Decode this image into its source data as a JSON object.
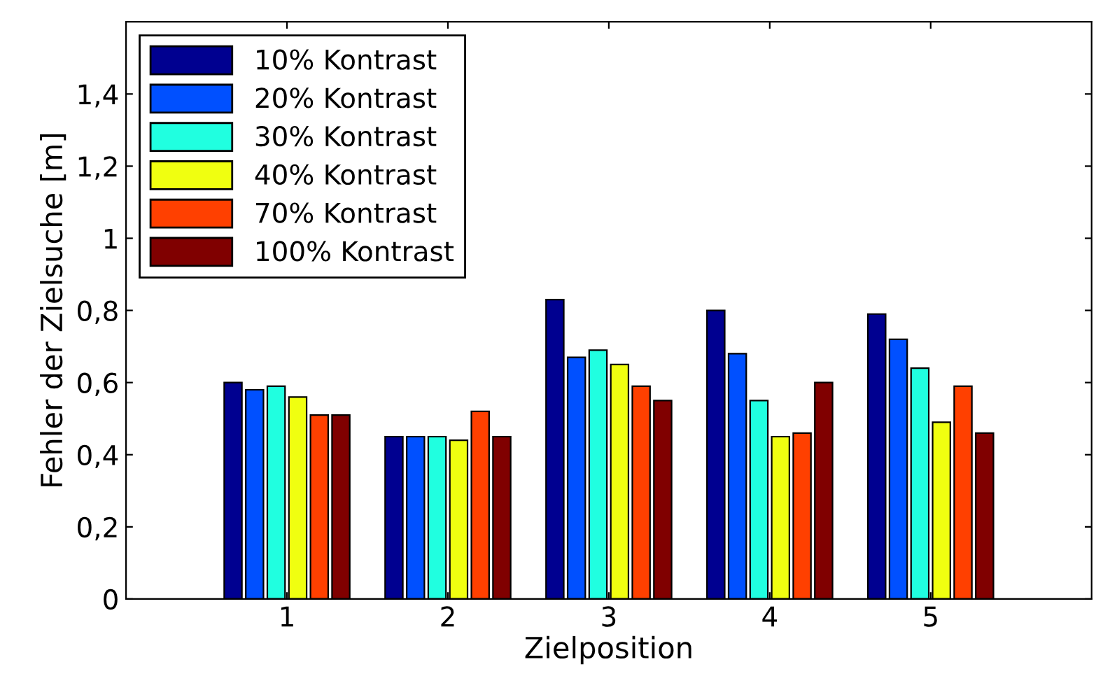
{
  "chart_data": {
    "type": "bar",
    "xlabel": "Zielposition",
    "ylabel": "Fehler der Zielsuche [m]",
    "categories": [
      "1",
      "2",
      "3",
      "4",
      "5"
    ],
    "series": [
      {
        "name": "10% Kontrast",
        "color": "#000090",
        "values": [
          0.6,
          0.45,
          0.83,
          0.8,
          0.79
        ]
      },
      {
        "name": "20% Kontrast",
        "color": "#0050ff",
        "values": [
          0.58,
          0.45,
          0.67,
          0.68,
          0.72
        ]
      },
      {
        "name": "30% Kontrast",
        "color": "#20ffe0",
        "values": [
          0.59,
          0.45,
          0.69,
          0.55,
          0.64
        ]
      },
      {
        "name": "40% Kontrast",
        "color": "#f0ff10",
        "values": [
          0.56,
          0.44,
          0.65,
          0.45,
          0.49
        ]
      },
      {
        "name": "70% Kontrast",
        "color": "#ff4000",
        "values": [
          0.51,
          0.52,
          0.59,
          0.46,
          0.59
        ]
      },
      {
        "name": "100% Kontrast",
        "color": "#800000",
        "values": [
          0.51,
          0.45,
          0.55,
          0.6,
          0.46
        ]
      }
    ],
    "ylim": [
      0,
      1.6
    ],
    "yticks": [
      0,
      {
        "value": 0.2,
        "label": "0,2"
      },
      {
        "value": 0.4,
        "label": "0,4"
      },
      {
        "value": 0.6,
        "label": "0,6"
      },
      {
        "value": 0.8,
        "label": "0,8"
      },
      1,
      {
        "value": 1.2,
        "label": "1,2"
      },
      {
        "value": 1.4,
        "label": "1,4"
      }
    ],
    "grid": false,
    "legend": "top left"
  }
}
